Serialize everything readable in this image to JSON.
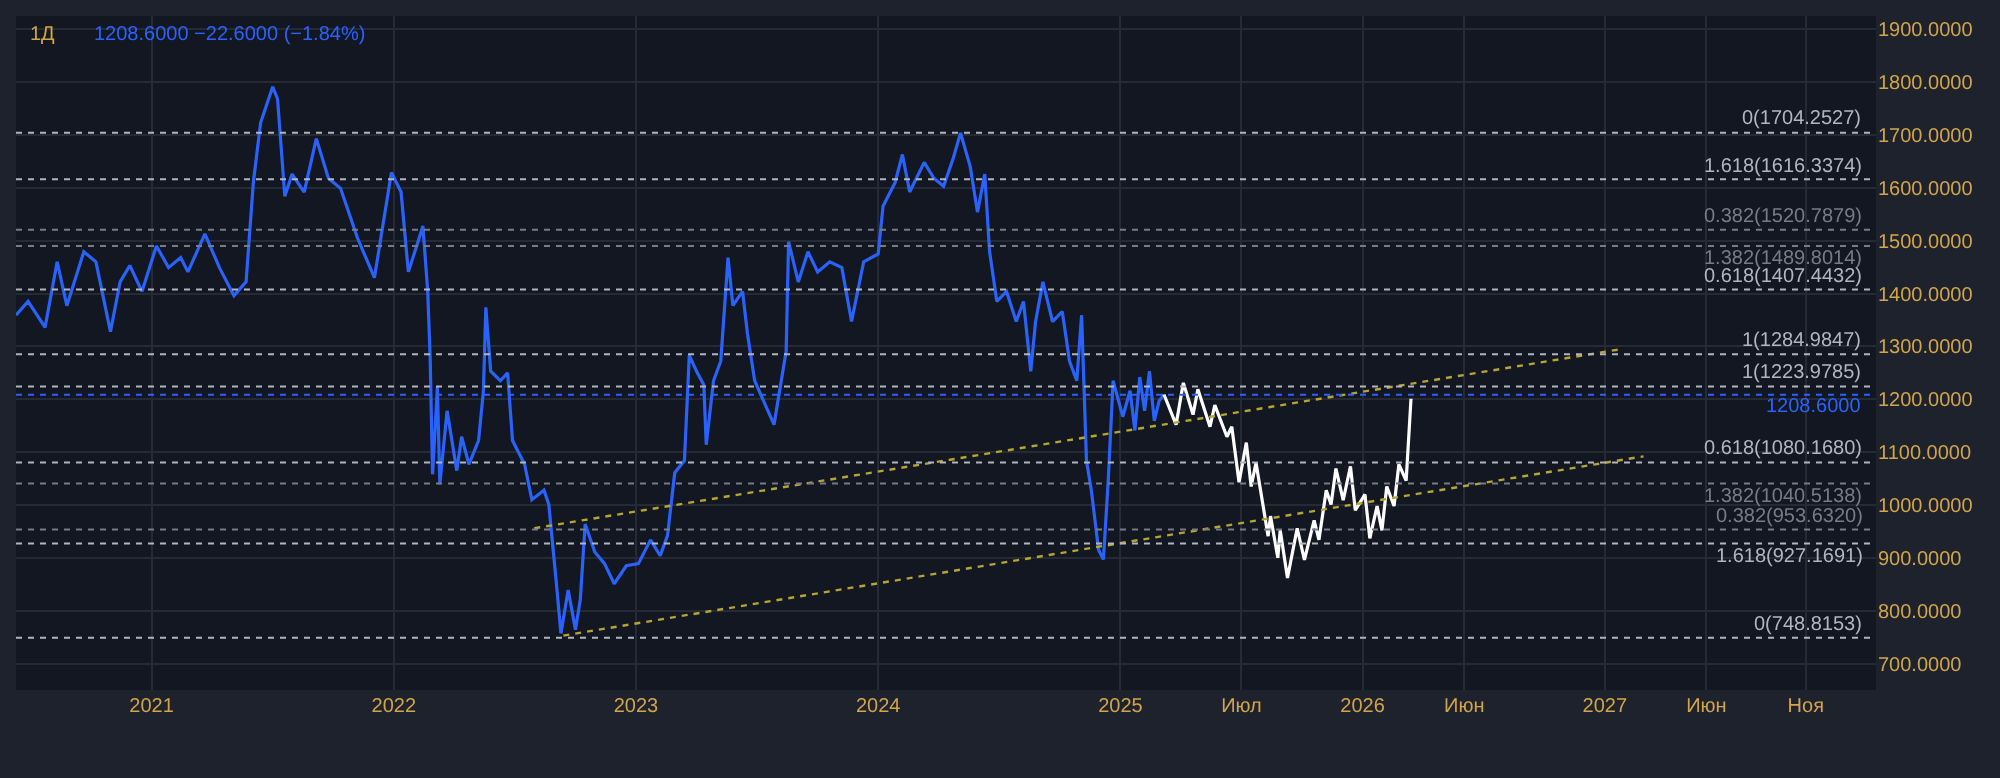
{
  "chart_data": {
    "type": "line",
    "title": "1Д",
    "subtitle": "1208.6000 −22.6000 (−1.84%)",
    "xlim": [
      2020.44,
      2028.12
    ],
    "ylim": [
      650,
      1925
    ],
    "xticks": [
      2021,
      2022,
      2023,
      2024,
      2025,
      {
        "value": 2025.5,
        "label": "Июл"
      },
      2026,
      {
        "value": 2026.42,
        "label": "Июн"
      },
      2027,
      {
        "value": 2027.42,
        "label": "Июн"
      },
      {
        "value": 2027.83,
        "label": "Ноя"
      }
    ],
    "yticks": [
      {
        "value": 700,
        "label": "700.0000"
      },
      {
        "value": 800,
        "label": "800.0000"
      },
      {
        "value": 900,
        "label": "900.0000"
      },
      {
        "value": 1000,
        "label": "1000.0000"
      },
      {
        "value": 1100,
        "label": "1100.0000"
      },
      {
        "value": 1200,
        "label": "1200.0000"
      },
      {
        "value": 1300,
        "label": "1300.0000"
      },
      {
        "value": 1400,
        "label": "1400.0000"
      },
      {
        "value": 1500,
        "label": "1500.0000"
      },
      {
        "value": 1600,
        "label": "1600.0000"
      },
      {
        "value": 1700,
        "label": "1700.0000"
      },
      {
        "value": 1800,
        "label": "1800.0000"
      },
      {
        "value": 1900,
        "label": "1900.0000"
      }
    ],
    "grid": true,
    "series": [
      {
        "color": "#2962ff",
        "x": [
          2020.44,
          2020.49,
          2020.56,
          2020.61,
          2020.65,
          2020.72,
          2020.77,
          2020.83,
          2020.87,
          2020.91,
          2020.96,
          2021.02,
          2021.07,
          2021.12,
          2021.15,
          2021.22,
          2021.28,
          2021.34,
          2021.39,
          2021.42,
          2021.45,
          2021.5,
          2021.52,
          2021.55,
          2021.58,
          2021.63,
          2021.68,
          2021.73,
          2021.78,
          2021.85,
          2021.92,
          2021.99,
          2022.03,
          2022.06,
          2022.1,
          2022.12,
          2022.14,
          2022.15,
          2022.16,
          2022.18,
          2022.19,
          2022.22,
          2022.26,
          2022.28,
          2022.31,
          2022.35,
          2022.37,
          2022.38,
          2022.4,
          2022.44,
          2022.47,
          2022.49,
          2022.54,
          2022.57,
          2022.62,
          2022.64,
          2022.67,
          2022.69,
          2022.72,
          2022.75,
          2022.77,
          2022.79,
          2022.83,
          2022.87,
          2022.91,
          2022.96,
          2023.01,
          2023.06,
          2023.1,
          2023.13,
          2023.16,
          2023.2,
          2023.22,
          2023.25,
          2023.28,
          2023.29,
          2023.32,
          2023.35,
          2023.38,
          2023.4,
          2023.44,
          2023.46,
          2023.49,
          2023.57,
          2023.62,
          2023.63,
          2023.67,
          2023.71,
          2023.75,
          2023.8,
          2023.85,
          2023.89,
          2023.94,
          2024.0,
          2024.02,
          2024.07,
          2024.1,
          2024.13,
          2024.19,
          2024.23,
          2024.27,
          2024.31,
          2024.34,
          2024.38,
          2024.41,
          2024.44,
          2024.46,
          2024.49,
          2024.53,
          2024.57,
          2024.6,
          2024.63,
          2024.65,
          2024.68,
          2024.72,
          2024.76,
          2024.79,
          2024.82,
          2024.84,
          2024.86,
          2024.88,
          2024.91,
          2024.93,
          2024.95,
          2024.97,
          2025.01,
          2025.04,
          2025.06,
          2025.08,
          2025.1,
          2025.12,
          2025.14,
          2025.16,
          2025.18
        ],
        "values": [
          1359,
          1385,
          1336,
          1460,
          1377,
          1479,
          1460,
          1328,
          1422,
          1453,
          1404,
          1490,
          1449,
          1468,
          1441,
          1513,
          1449,
          1396,
          1422,
          1610,
          1723,
          1791,
          1768,
          1584,
          1626,
          1592,
          1693,
          1618,
          1599,
          1505,
          1430,
          1629,
          1592,
          1441,
          1498,
          1528,
          1404,
          1280,
          1058,
          1223,
          1039,
          1178,
          1065,
          1129,
          1077,
          1122,
          1216,
          1374,
          1253,
          1235,
          1250,
          1122,
          1077,
          1010,
          1028,
          1001,
          858,
          757,
          839,
          764,
          821,
          964,
          911,
          889,
          851,
          885,
          889,
          934,
          904,
          942,
          1061,
          1084,
          1283,
          1253,
          1227,
          1114,
          1235,
          1272,
          1468,
          1377,
          1404,
          1325,
          1235,
          1152,
          1291,
          1498,
          1422,
          1479,
          1441,
          1460,
          1449,
          1347,
          1460,
          1475,
          1565,
          1610,
          1663,
          1592,
          1648,
          1618,
          1603,
          1656,
          1704,
          1640,
          1554,
          1626,
          1479,
          1385,
          1404,
          1347,
          1385,
          1253,
          1347,
          1422,
          1347,
          1366,
          1272,
          1235,
          1359,
          1084,
          1028,
          915,
          897,
          1047,
          1235,
          1167,
          1216,
          1141,
          1242,
          1178,
          1253,
          1159,
          1197,
          1209
        ]
      },
      {
        "color": "#ffffff",
        "x": [
          2025.18,
          2025.23,
          2025.26,
          2025.3,
          2025.32,
          2025.37,
          2025.39,
          2025.44,
          2025.46,
          2025.49,
          2025.52,
          2025.54,
          2025.56,
          2025.61,
          2025.62,
          2025.65,
          2025.66,
          2025.69,
          2025.73,
          2025.76,
          2025.8,
          2025.82,
          2025.85,
          2025.87,
          2025.89,
          2025.92,
          2025.95,
          2025.97,
          2026.01,
          2026.03,
          2026.06,
          2026.08,
          2026.1,
          2026.13,
          2026.15,
          2026.18,
          2026.2
        ],
        "values": [
          1209,
          1152,
          1231,
          1171,
          1219,
          1148,
          1189,
          1129,
          1148,
          1043,
          1118,
          1035,
          1080,
          941,
          979,
          900,
          952,
          862,
          956,
          896,
          971,
          934,
          1028,
          1001,
          1069,
          1009,
          1073,
          990,
          1020,
          937,
          998,
          952,
          1035,
          998,
          1077,
          1046,
          1201
        ]
      },
      {
        "color": "#b5a533",
        "line_style": "dotted",
        "x": [
          2022.58,
          2027.07
        ],
        "values": [
          956,
          1295
        ]
      },
      {
        "color": "#b5a533",
        "line_style": "dotted",
        "x": [
          2022.7,
          2027.16
        ],
        "values": [
          753,
          1092
        ]
      }
    ],
    "ref_lines": [
      {
        "axis": "y",
        "value": 1704.2527,
        "label": "0(1704.2527)",
        "color": "#b2b5be",
        "line_style": "dotted"
      },
      {
        "axis": "y",
        "value": 1616.3374,
        "label": "1.618(1616.3374)",
        "color": "#b2b5be",
        "line_style": "dotted"
      },
      {
        "axis": "y",
        "value": 1520.7879,
        "label": "0.382(1520.7879)",
        "color": "#787b86",
        "line_style": "dotted"
      },
      {
        "axis": "y",
        "value": 1489.8014,
        "label": "1.382(1489.8014)",
        "color": "#787b86",
        "line_style": "dotted"
      },
      {
        "axis": "y",
        "value": 1407.4432,
        "label": "0.618(1407.4432)",
        "color": "#b2b5be",
        "line_style": "dotted"
      },
      {
        "axis": "y",
        "value": 1284.9847,
        "label": "1(1284.9847)",
        "color": "#b2b5be",
        "line_style": "dotted"
      },
      {
        "axis": "y",
        "value": 1223.9785,
        "label": "1(1223.9785)",
        "color": "#b2b5be",
        "line_style": "dotted"
      },
      {
        "axis": "y",
        "value": 1208.6,
        "label": "1208.6000",
        "color": "#2962ff",
        "line_style": "dotted"
      },
      {
        "axis": "y",
        "value": 1080.168,
        "label": "0.618(1080.1680)",
        "color": "#b2b5be",
        "line_style": "dotted"
      },
      {
        "axis": "y",
        "value": 1040.5138,
        "label": "1.382(1040.5138)",
        "color": "#787b86",
        "line_style": "dotted"
      },
      {
        "axis": "y",
        "value": 953.632,
        "label": "0.382(953.6320)",
        "color": "#787b86",
        "line_style": "dotted"
      },
      {
        "axis": "y",
        "value": 927.1691,
        "label": "1.618(927.1691)",
        "color": "#b2b5be",
        "line_style": "dotted"
      },
      {
        "axis": "y",
        "value": 748.8153,
        "label": "0(748.8153)",
        "color": "#b2b5be",
        "line_style": "dotted"
      }
    ]
  }
}
